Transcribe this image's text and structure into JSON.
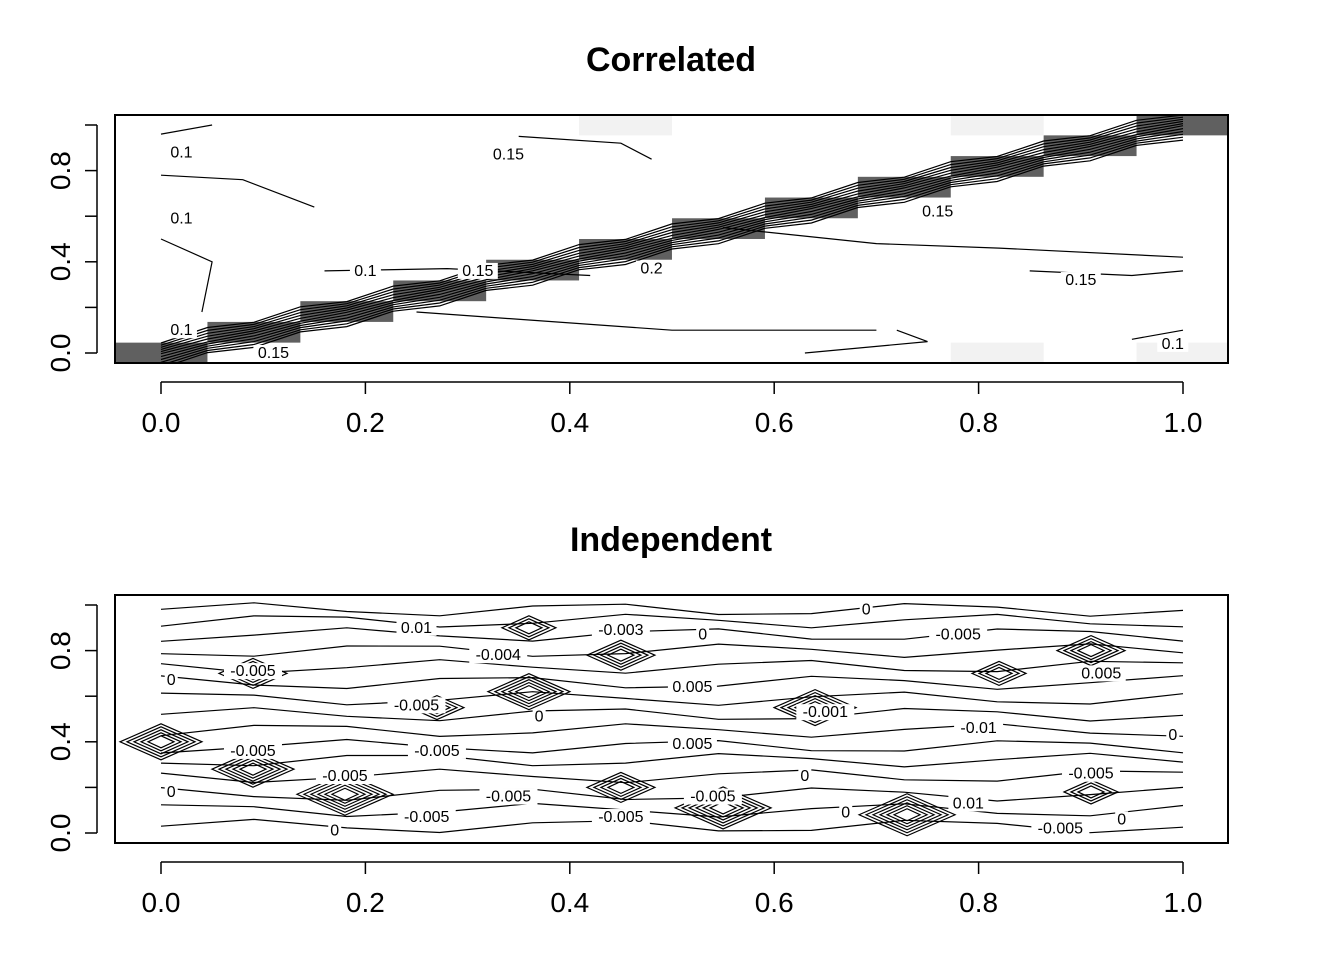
{
  "chart_data": [
    {
      "type": "heatmap",
      "title": "Correlated",
      "xlabel": "",
      "ylabel": "",
      "xlim": [
        0,
        1
      ],
      "ylim": [
        0,
        1
      ],
      "grid": false,
      "legend": "none",
      "x_ticks": [
        "0.0",
        "0.2",
        "0.4",
        "0.6",
        "0.8",
        "1.0"
      ],
      "y_ticks": [
        "0.0",
        "0.4",
        "0.8"
      ],
      "colors": {
        "high": "#606060",
        "low_tint": "#f2f2f2",
        "diagonal_pale": "#ffffff",
        "line": "#000000"
      },
      "heat_cells": [
        {
          "x": 0.0,
          "y": 0.0,
          "shade": "high"
        },
        {
          "x": 0.0909,
          "y": 0.0909,
          "shade": "high"
        },
        {
          "x": 0.1818,
          "y": 0.1818,
          "shade": "high"
        },
        {
          "x": 0.2727,
          "y": 0.2727,
          "shade": "high"
        },
        {
          "x": 0.3636,
          "y": 0.3636,
          "shade": "high"
        },
        {
          "x": 0.4545,
          "y": 0.4545,
          "shade": "high"
        },
        {
          "x": 0.5455,
          "y": 0.5455,
          "shade": "high"
        },
        {
          "x": 0.6364,
          "y": 0.6364,
          "shade": "high"
        },
        {
          "x": 0.7273,
          "y": 0.7273,
          "shade": "high"
        },
        {
          "x": 0.8182,
          "y": 0.8182,
          "shade": "high"
        },
        {
          "x": 0.9091,
          "y": 0.9091,
          "shade": "high"
        },
        {
          "x": 1.0,
          "y": 1.0,
          "shade": "high"
        },
        {
          "x": 0.4545,
          "y": 1.0,
          "shade": "low_tint"
        },
        {
          "x": 0.8182,
          "y": 1.0,
          "shade": "low_tint"
        },
        {
          "x": 0.8182,
          "y": 0.0,
          "shade": "low_tint"
        },
        {
          "x": 1.0,
          "y": 0.0,
          "shade": "low_tint"
        }
      ],
      "contour_labels": [
        {
          "text": "0.1",
          "x": 0.02,
          "y": 0.88
        },
        {
          "text": "0.15",
          "x": 0.34,
          "y": 0.87
        },
        {
          "text": "0.1",
          "x": 0.02,
          "y": 0.59
        },
        {
          "text": "0.1",
          "x": 0.2,
          "y": 0.36
        },
        {
          "text": "0.15",
          "x": 0.31,
          "y": 0.36
        },
        {
          "text": "0.2",
          "x": 0.48,
          "y": 0.37
        },
        {
          "text": "0.15",
          "x": 0.76,
          "y": 0.62
        },
        {
          "text": "0.15",
          "x": 0.9,
          "y": 0.32
        },
        {
          "text": "0.1",
          "x": 0.02,
          "y": 0.1
        },
        {
          "text": "0.15",
          "x": 0.11,
          "y": 0.0
        },
        {
          "text": "0.1",
          "x": 0.99,
          "y": 0.04
        }
      ]
    },
    {
      "type": "heatmap",
      "title": "Independent",
      "xlabel": "",
      "ylabel": "",
      "xlim": [
        0,
        1
      ],
      "ylim": [
        0,
        1
      ],
      "grid": false,
      "legend": "none",
      "x_ticks": [
        "0.0",
        "0.2",
        "0.4",
        "0.6",
        "0.8",
        "1.0"
      ],
      "y_ticks": [
        "0.0",
        "0.4",
        "0.8"
      ],
      "colors": {
        "line": "#000000"
      },
      "contour_labels": [
        {
          "text": "0.01",
          "x": 0.25,
          "y": 0.9
        },
        {
          "text": "-0.003",
          "x": 0.45,
          "y": 0.89
        },
        {
          "text": "0",
          "x": 0.53,
          "y": 0.87
        },
        {
          "text": "0",
          "x": 0.69,
          "y": 0.98
        },
        {
          "text": "-0.005",
          "x": 0.78,
          "y": 0.87
        },
        {
          "text": "-0.004",
          "x": 0.33,
          "y": 0.78
        },
        {
          "text": "-0.005",
          "x": 0.09,
          "y": 0.71
        },
        {
          "text": "0",
          "x": 0.01,
          "y": 0.67
        },
        {
          "text": "0.005",
          "x": 0.52,
          "y": 0.64
        },
        {
          "text": "0.005",
          "x": 0.92,
          "y": 0.7
        },
        {
          "text": "-0.005",
          "x": 0.25,
          "y": 0.56
        },
        {
          "text": "0",
          "x": 0.37,
          "y": 0.51
        },
        {
          "text": "-0.001",
          "x": 0.65,
          "y": 0.53
        },
        {
          "text": "-0.01",
          "x": 0.8,
          "y": 0.46
        },
        {
          "text": "0.005",
          "x": 0.52,
          "y": 0.39
        },
        {
          "text": "0",
          "x": 0.99,
          "y": 0.43
        },
        {
          "text": "-0.005",
          "x": 0.09,
          "y": 0.36
        },
        {
          "text": "-0.005",
          "x": 0.27,
          "y": 0.36
        },
        {
          "text": "-0.005",
          "x": 0.18,
          "y": 0.25
        },
        {
          "text": "0",
          "x": 0.63,
          "y": 0.25
        },
        {
          "text": "-0.005",
          "x": 0.91,
          "y": 0.26
        },
        {
          "text": "0",
          "x": 0.01,
          "y": 0.18
        },
        {
          "text": "-0.005",
          "x": 0.34,
          "y": 0.16
        },
        {
          "text": "-0.005",
          "x": 0.54,
          "y": 0.16
        },
        {
          "text": "0.01",
          "x": 0.79,
          "y": 0.13
        },
        {
          "text": "0",
          "x": 0.67,
          "y": 0.09
        },
        {
          "text": "-0.005",
          "x": 0.26,
          "y": 0.07
        },
        {
          "text": "-0.005",
          "x": 0.45,
          "y": 0.07
        },
        {
          "text": "0",
          "x": 0.94,
          "y": 0.06
        },
        {
          "text": "-0.005",
          "x": 0.88,
          "y": 0.02
        },
        {
          "text": "0",
          "x": 0.17,
          "y": 0.01
        }
      ]
    }
  ]
}
